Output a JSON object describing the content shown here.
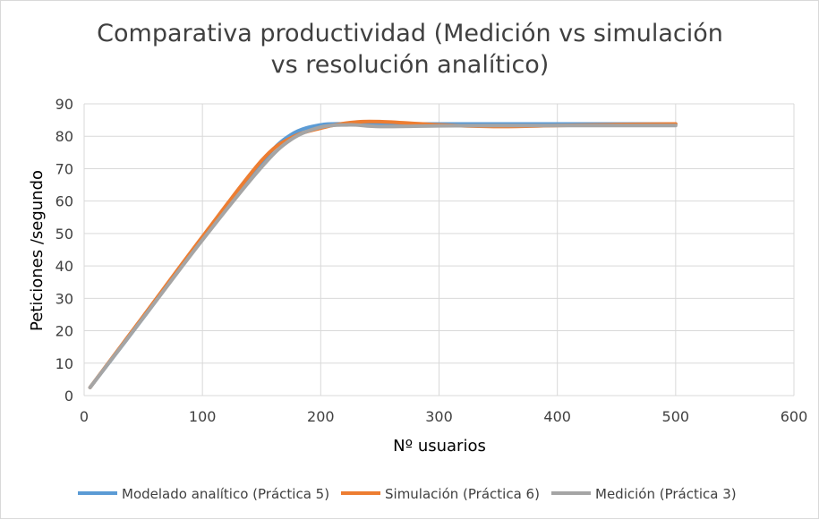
{
  "chart_data": {
    "type": "line",
    "title_lines": [
      "Comparativa productividad (Medición vs simulación",
      "vs resolución analítico)"
    ],
    "xlabel": "Nº usuarios",
    "ylabel": "Peticiones /segundo",
    "xlim": [
      0,
      600
    ],
    "ylim": [
      0,
      90
    ],
    "xticks": [
      0,
      100,
      200,
      300,
      400,
      500,
      600
    ],
    "yticks": [
      0,
      10,
      20,
      30,
      40,
      50,
      60,
      70,
      80,
      90
    ],
    "grid": true,
    "legend_position": "bottom",
    "x": [
      5,
      50,
      100,
      150,
      175,
      200,
      225,
      250,
      300,
      350,
      400,
      450,
      500
    ],
    "series": [
      {
        "name": "Modelado analítico (Práctica 5)",
        "color": "#5b9bd5",
        "values": [
          2.5,
          24,
          48.5,
          72,
          80.5,
          83.5,
          83.8,
          83.8,
          83.8,
          83.8,
          83.8,
          83.8,
          83.8
        ]
      },
      {
        "name": "Simulación (Práctica 6)",
        "color": "#ed7d31",
        "values": [
          2.5,
          24.5,
          49,
          72.5,
          79.5,
          82.5,
          84.2,
          84.5,
          83.5,
          83,
          83.3,
          83.6,
          83.8
        ]
      },
      {
        "name": "Medición (Práctica 3)",
        "color": "#a5a5a5",
        "values": [
          2.5,
          24,
          48,
          70.5,
          79,
          82.8,
          83.5,
          83,
          83.2,
          83.3,
          83.3,
          83.3,
          83.3
        ]
      }
    ]
  }
}
